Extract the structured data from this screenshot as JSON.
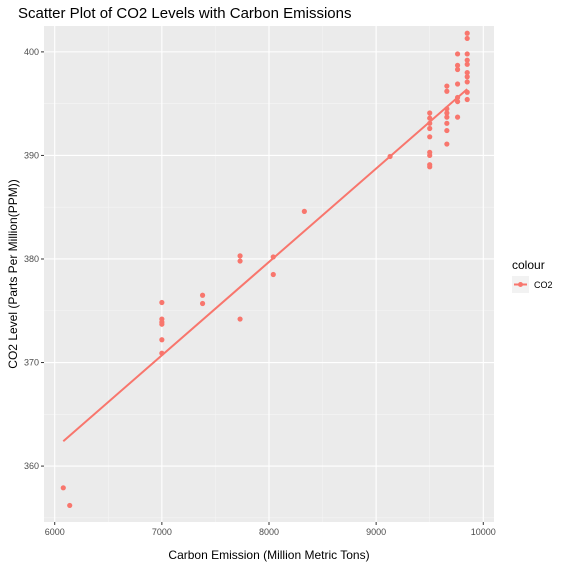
{
  "chart_data": {
    "type": "scatter",
    "title": "Scatter Plot of CO2 Levels with Carbon Emissions",
    "xlabel": "Carbon Emission (Million Metric Tons)",
    "ylabel": "CO2 Level (Parts Per Million(PPM))",
    "xlim": [
      5900,
      10100
    ],
    "ylim": [
      354.6,
      402.5
    ],
    "x_ticks": [
      6000,
      7000,
      8000,
      9000,
      10000
    ],
    "y_ticks": [
      360,
      370,
      380,
      390,
      400
    ],
    "grid": true,
    "legend": {
      "title": "colour",
      "position": "right",
      "entries": [
        "CO2"
      ]
    },
    "colors": {
      "series": "#F8766D",
      "panel": "#EBEBEB",
      "grid": "#ffffff"
    },
    "series": [
      {
        "name": "CO2",
        "points": [
          [
            6080,
            357.9
          ],
          [
            6140,
            356.2
          ],
          [
            7000,
            375.8
          ],
          [
            7000,
            374.2
          ],
          [
            7000,
            373.9
          ],
          [
            7000,
            373.7
          ],
          [
            7000,
            372.2
          ],
          [
            7000,
            370.9
          ],
          [
            7380,
            376.5
          ],
          [
            7380,
            375.7
          ],
          [
            7730,
            380.3
          ],
          [
            7730,
            379.8
          ],
          [
            7730,
            374.2
          ],
          [
            8040,
            380.2
          ],
          [
            8040,
            378.5
          ],
          [
            8330,
            384.6
          ],
          [
            9130,
            389.9
          ],
          [
            9500,
            394.1
          ],
          [
            9500,
            393.6
          ],
          [
            9500,
            393.1
          ],
          [
            9500,
            392.6
          ],
          [
            9500,
            391.8
          ],
          [
            9500,
            390.3
          ],
          [
            9500,
            390.0
          ],
          [
            9500,
            389.1
          ],
          [
            9500,
            388.9
          ],
          [
            9660,
            396.7
          ],
          [
            9660,
            396.2
          ],
          [
            9660,
            394.5
          ],
          [
            9660,
            394.1
          ],
          [
            9660,
            393.7
          ],
          [
            9660,
            393.1
          ],
          [
            9660,
            392.4
          ],
          [
            9660,
            391.1
          ],
          [
            9760,
            399.8
          ],
          [
            9760,
            398.7
          ],
          [
            9760,
            398.3
          ],
          [
            9760,
            396.9
          ],
          [
            9760,
            395.6
          ],
          [
            9760,
            395.2
          ],
          [
            9760,
            393.7
          ],
          [
            9850,
            401.8
          ],
          [
            9850,
            401.3
          ],
          [
            9850,
            399.8
          ],
          [
            9850,
            399.2
          ],
          [
            9850,
            398.8
          ],
          [
            9850,
            398.0
          ],
          [
            9850,
            397.6
          ],
          [
            9850,
            397.1
          ],
          [
            9850,
            396.1
          ],
          [
            9850,
            395.4
          ]
        ]
      }
    ],
    "fit_line": {
      "x": [
        6080,
        9850
      ],
      "y": [
        362.4,
        396.4
      ]
    }
  }
}
